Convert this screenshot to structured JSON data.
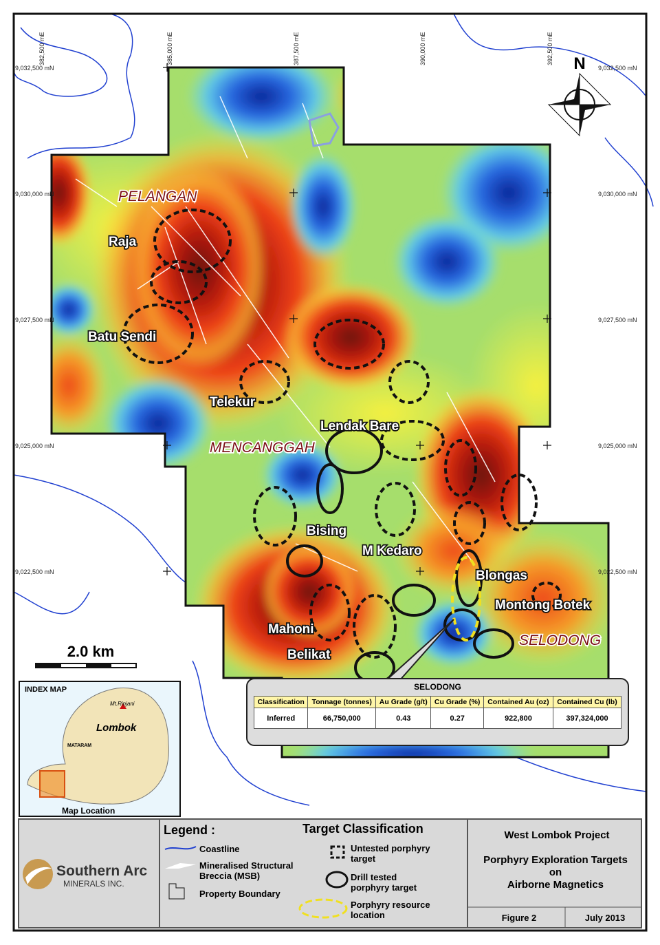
{
  "grid": {
    "eastings": [
      "382,500 mE",
      "385,000 mE",
      "387,500 mE",
      "390,000 mE",
      "392,500 mE"
    ],
    "northings_left": [
      "9,032,500 mN",
      "9,030,000 mN",
      "9,027,500 mN",
      "9,025,000 mN",
      "9,022,500 mN"
    ],
    "northings_right": [
      "9,032,500 mN",
      "9,030,000 mN",
      "9,027,500 mN",
      "9,025,000 mN",
      "9,022,500 mN"
    ]
  },
  "north": "N",
  "places": [
    "PELANGAN",
    "Raja",
    "Batu Sendi",
    "Telekur",
    "Lendak Bare",
    "MENCANGGAH",
    "Bising",
    "M Kedaro",
    "Blongas",
    "Montong Botek",
    "SELODONG",
    "Mahoni",
    "Belikat"
  ],
  "scale": "2.0 km",
  "resource_table": {
    "title": "SELODONG",
    "headers": [
      "Classification",
      "Tonnage (tonnes)",
      "Au Grade (g/t)",
      "Cu Grade (%)",
      "Contained Au (oz)",
      "Contained Cu (lb)"
    ],
    "rows": [
      [
        "Inferred",
        "66,750,000",
        "0.43",
        "0.27",
        "922,800",
        "397,324,000"
      ]
    ]
  },
  "index_map": {
    "title": "INDEX MAP",
    "peak": "Mt.Rinjani",
    "island": "Lombok",
    "city": "MATARAM",
    "location": "Map Location"
  },
  "legend": {
    "title": "Legend :",
    "items": [
      "Coastline",
      "Mineralised Structural Breccia (MSB)",
      "Property Boundary"
    ],
    "target_title": "Target Classification",
    "targets": [
      "Untested porphyry target",
      "Drill tested porphyry target",
      "Porphyry resource location"
    ]
  },
  "logo": {
    "name": "Southern Arc",
    "sub": "MINERALS INC."
  },
  "title_block": {
    "project": "West Lombok Project",
    "title_lines": [
      "Porphyry Exploration Targets",
      "on",
      "Airborne Magnetics"
    ],
    "figure": "Figure 2",
    "date": "July 2013"
  }
}
